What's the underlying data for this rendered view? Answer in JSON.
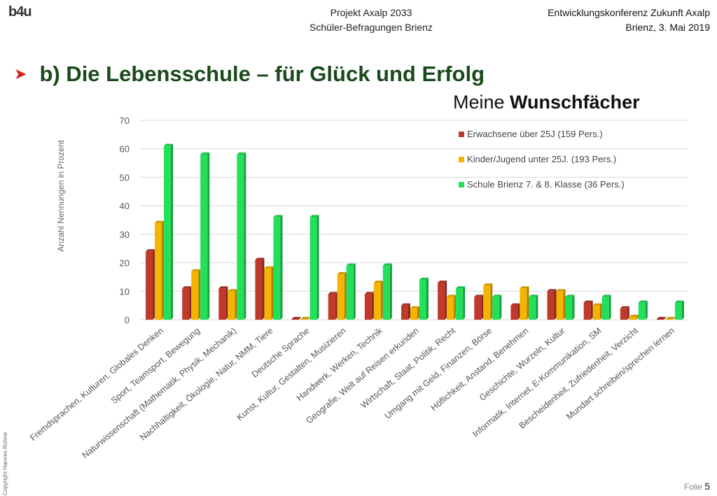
{
  "header": {
    "logo": "b4u",
    "center_line1": "Projekt Axalp 2033",
    "center_line2": "Schüler-Befragungen Brienz",
    "right_line1": "Entwicklungskonferenz Zukunft Axalp",
    "right_line2": "Brienz, 3. Mai 2019"
  },
  "slide": {
    "title": "b) Die Lebensschule – für Glück und Erfolg",
    "chart_title_normal": "Meine ",
    "chart_title_bold": "Wunschfächer",
    "copyright": "Copyright Hannes Rohrer",
    "folio_label": "Folie ",
    "folio_number": "5"
  },
  "chart_data": {
    "type": "bar",
    "ylabel": "Anzahl Nennungen in Prozent",
    "ylim": [
      0,
      70
    ],
    "yticks": [
      0,
      10,
      20,
      30,
      40,
      50,
      60,
      70
    ],
    "grid": true,
    "legend_position": "top-right",
    "categories": [
      "Fremdsprachen, Kulturen, Globales Denken",
      "Sport, Teamsport, Bewegung",
      "Naturwissenschaft (Mathematik, Physik, Mechanik)",
      "Nachhaltigkeit, Ökologie, Natur, NMM, Tiere",
      "Deutsche Sprache",
      "Kunst, Kultur, Gestalten, Musizieren",
      "Handwerk, Werken, Technik",
      "Geografie, Welt auf Reisen erkunden",
      "Wirtschaft, Staat, Politik, Recht",
      "Umgang mit Geld, Finanzen, Börse",
      "Höflichkeit, Anstand, Benehmen",
      "Geschichte, Wurzeln, Kultur",
      "Informatik, Internet, E-Kommunikation, SM",
      "Bescheidenheit, Zufriedenheit, Verzicht",
      "Mundart schreiben/sprechen lernen"
    ],
    "series": [
      {
        "name": "Erwachsene über 25J (159 Pers.)",
        "color": "#c0392b",
        "values": [
          24,
          11,
          11,
          21,
          0,
          9,
          9,
          5,
          13,
          8,
          5,
          10,
          6,
          4,
          0
        ]
      },
      {
        "name": "Kinder/Jugend unter 25J. (193 Pers.)",
        "color": "#f5b400",
        "values": [
          34,
          17,
          10,
          18,
          0,
          16,
          13,
          4,
          8,
          12,
          11,
          10,
          5,
          1,
          0
        ]
      },
      {
        "name": "Schule Brienz 7. & 8. Klasse (36 Pers.)",
        "color": "#22e05a",
        "values": [
          61,
          58,
          58,
          36,
          36,
          19,
          19,
          14,
          11,
          8,
          8,
          8,
          8,
          6,
          6
        ]
      }
    ]
  }
}
